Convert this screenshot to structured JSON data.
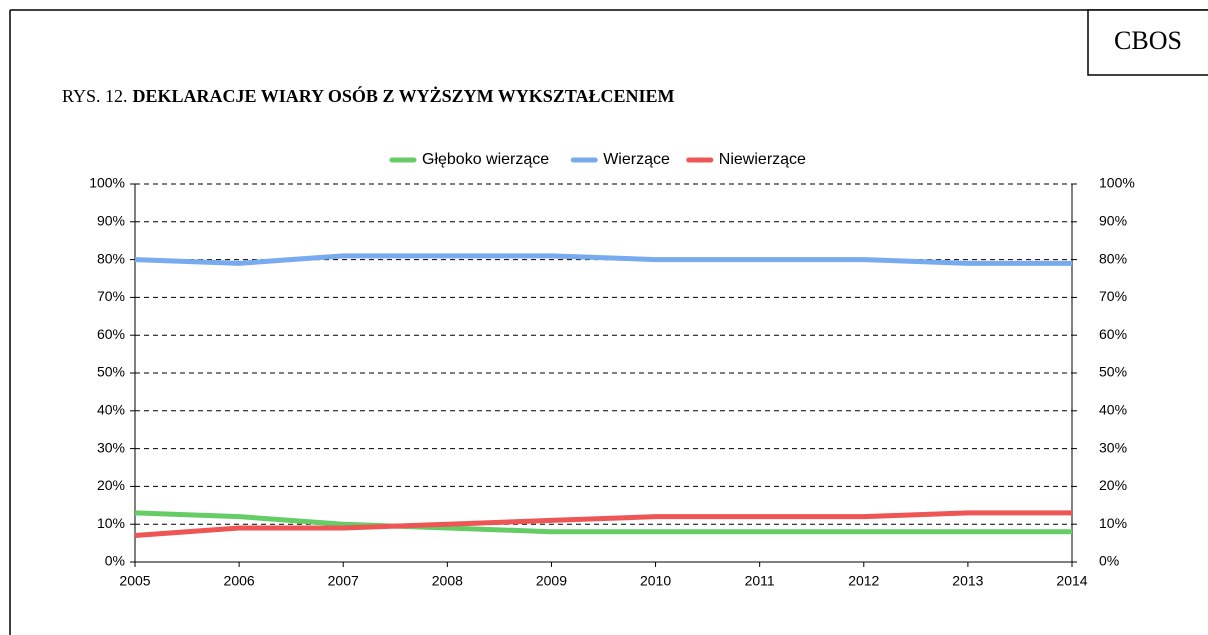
{
  "header": {
    "logo": "CBOS"
  },
  "chart_data": {
    "type": "line",
    "title_prefix": "RYS. 12.",
    "title": "DEKLARACJE WIARY OSÓB Z WYŻSZYM WYKSZTAŁCENIEM",
    "x": [
      2005,
      2006,
      2007,
      2008,
      2009,
      2010,
      2011,
      2012,
      2013,
      2014
    ],
    "xlim": [
      2005,
      2014
    ],
    "xticks": [
      2005,
      2006,
      2007,
      2008,
      2009,
      2010,
      2011,
      2012,
      2013,
      2014
    ],
    "ylim": [
      0,
      100
    ],
    "yticks": [
      {
        "value": 0,
        "label": "0%"
      },
      {
        "value": 10,
        "label": "10%"
      },
      {
        "value": 20,
        "label": "20%"
      },
      {
        "value": 30,
        "label": "30%"
      },
      {
        "value": 40,
        "label": "40%"
      },
      {
        "value": 50,
        "label": "50%"
      },
      {
        "value": 60,
        "label": "60%"
      },
      {
        "value": 70,
        "label": "70%"
      },
      {
        "value": 80,
        "label": "80%"
      },
      {
        "value": 90,
        "label": "90%"
      },
      {
        "value": 100,
        "label": "100%"
      }
    ],
    "y2lim": [
      0,
      100
    ],
    "y2ticks": [
      {
        "value": 0,
        "label": "0%"
      },
      {
        "value": 10,
        "label": "10%"
      },
      {
        "value": 20,
        "label": "20%"
      },
      {
        "value": 30,
        "label": "30%"
      },
      {
        "value": 40,
        "label": "40%"
      },
      {
        "value": 50,
        "label": "50%"
      },
      {
        "value": 60,
        "label": "60%"
      },
      {
        "value": 70,
        "label": "70%"
      },
      {
        "value": 80,
        "label": "80%"
      },
      {
        "value": 90,
        "label": "90%"
      },
      {
        "value": 100,
        "label": "100%"
      }
    ],
    "grid": true,
    "legend": "top",
    "series": [
      {
        "name": "Głęboko wierzące",
        "color": "#66cc66",
        "values": [
          13,
          12,
          10,
          9,
          8,
          8,
          8,
          8,
          8,
          8
        ]
      },
      {
        "name": "Wierzące",
        "color": "#77aaee",
        "values": [
          80,
          79,
          81,
          81,
          81,
          80,
          80,
          80,
          79,
          79
        ]
      },
      {
        "name": "Niewierzące",
        "color": "#ee5555",
        "values": [
          7,
          9,
          9,
          10,
          11,
          12,
          12,
          12,
          13,
          13
        ]
      }
    ]
  }
}
